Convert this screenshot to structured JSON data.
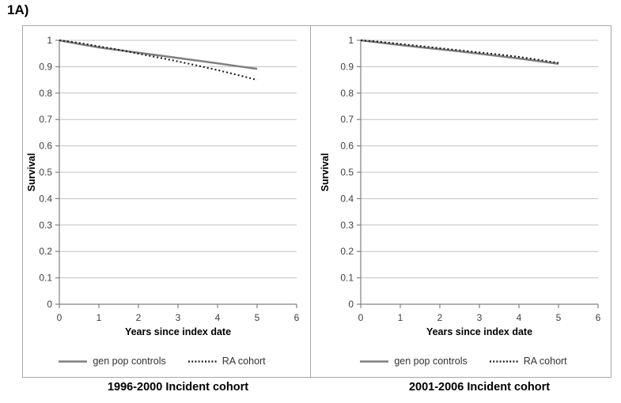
{
  "figure_label": "1A)",
  "colors": {
    "gen_pop_line": "#7f7f7f",
    "ra_line": "#1a1a1a",
    "gridline": "#c0c0c0",
    "axis": "#808080",
    "panel_border": "#a6a6a6",
    "tick_text": "#404040"
  },
  "chart_data": [
    {
      "type": "line",
      "title": "1996-2000 Incident cohort",
      "xlabel": "Years since index date",
      "ylabel": "Survival",
      "xlim": [
        0,
        6
      ],
      "ylim": [
        0,
        1
      ],
      "xticks": [
        0,
        1,
        2,
        3,
        4,
        5,
        6
      ],
      "yticks": [
        0,
        0.1,
        0.2,
        0.3,
        0.4,
        0.5,
        0.6,
        0.7,
        0.8,
        0.9,
        1
      ],
      "ytick_labels": [
        "0",
        "0.1",
        "0.2",
        "0.3",
        "0.4",
        "0.5",
        "0.6",
        "0.7",
        "0.8",
        "0.9",
        "1"
      ],
      "grid": "horizontal",
      "legend_position": "bottom",
      "series": [
        {
          "name": "gen pop controls",
          "line_style": "solid",
          "color": "#7f7f7f",
          "x": [
            0,
            0.5,
            1,
            1.5,
            2,
            2.5,
            3,
            3.5,
            4,
            4.5,
            5
          ],
          "y": [
            1.0,
            0.986,
            0.973,
            0.963,
            0.953,
            0.943,
            0.933,
            0.923,
            0.913,
            0.902,
            0.892
          ]
        },
        {
          "name": "RA cohort",
          "line_style": "dotted",
          "color": "#1a1a1a",
          "x": [
            0,
            0.5,
            1,
            1.5,
            2,
            2.5,
            3,
            3.5,
            4,
            4.5,
            5
          ],
          "y": [
            1.0,
            0.99,
            0.977,
            0.964,
            0.949,
            0.935,
            0.92,
            0.904,
            0.887,
            0.869,
            0.85
          ]
        }
      ]
    },
    {
      "type": "line",
      "title": "2001-2006 Incident cohort",
      "xlabel": "Years since index date",
      "ylabel": "Survival",
      "xlim": [
        0,
        6
      ],
      "ylim": [
        0,
        1
      ],
      "xticks": [
        0,
        1,
        2,
        3,
        4,
        5,
        6
      ],
      "yticks": [
        0,
        0.1,
        0.2,
        0.3,
        0.4,
        0.5,
        0.6,
        0.7,
        0.8,
        0.9,
        1
      ],
      "ytick_labels": [
        "0",
        "0.1",
        "0.2",
        "0.3",
        "0.4",
        "0.5",
        "0.6",
        "0.7",
        "0.8",
        "0.9",
        "1"
      ],
      "grid": "horizontal",
      "legend_position": "bottom",
      "series": [
        {
          "name": "gen pop controls",
          "line_style": "solid",
          "color": "#7f7f7f",
          "x": [
            0,
            0.5,
            1,
            1.5,
            2,
            2.5,
            3,
            3.5,
            4,
            4.5,
            5
          ],
          "y": [
            1.0,
            0.991,
            0.982,
            0.974,
            0.966,
            0.958,
            0.949,
            0.94,
            0.931,
            0.921,
            0.911
          ]
        },
        {
          "name": "RA cohort",
          "line_style": "dotted",
          "color": "#1a1a1a",
          "x": [
            0,
            0.5,
            1,
            1.5,
            2,
            2.5,
            3,
            3.5,
            4,
            4.5,
            5
          ],
          "y": [
            1.0,
            0.994,
            0.986,
            0.978,
            0.97,
            0.962,
            0.954,
            0.946,
            0.937,
            0.926,
            0.914
          ]
        }
      ]
    }
  ]
}
